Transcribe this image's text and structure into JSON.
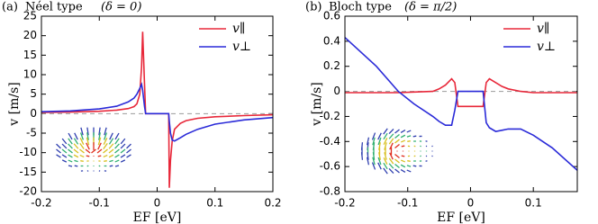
{
  "chart_data": [
    {
      "type": "line",
      "panel_label": "(a)",
      "title": "Néel type",
      "subtitle": "(δ = 0)",
      "xlabel": "EF [eV]",
      "ylabel": "v [m/s]",
      "x": [
        -0.2,
        -0.15,
        -0.1,
        -0.07,
        -0.05,
        -0.04,
        -0.035,
        -0.03,
        -0.027,
        -0.025,
        -0.022,
        -0.02,
        0.02,
        0.021,
        0.023,
        0.026,
        0.03,
        0.04,
        0.05,
        0.07,
        0.1,
        0.15,
        0.2
      ],
      "series": [
        {
          "name": "v∥",
          "color": "#e8283a",
          "values": [
            0.3,
            0.4,
            0.6,
            0.9,
            1.3,
            1.8,
            2.5,
            5,
            12,
            21,
            8,
            0,
            0,
            -19,
            -12,
            -7,
            -4,
            -2.5,
            -1.8,
            -1.2,
            -0.8,
            -0.5,
            -0.3
          ]
        },
        {
          "name": "v⊥",
          "color": "#2a2ad8",
          "values": [
            0.5,
            0.7,
            1.2,
            1.9,
            3,
            4,
            5,
            6.5,
            7.5,
            6,
            2,
            0,
            0,
            -2,
            -5,
            -6.8,
            -7,
            -6.2,
            -5.3,
            -4,
            -2.7,
            -1.6,
            -1
          ]
        }
      ],
      "xlim": [
        -0.2,
        0.2
      ],
      "xticks": [
        -0.2,
        -0.1,
        0,
        0.1,
        0.2
      ],
      "ylim": [
        -20,
        25
      ],
      "yticks": [
        -20,
        -15,
        -10,
        -5,
        0,
        5,
        10,
        15,
        20,
        25
      ],
      "zero_line": true,
      "legend": "upper right"
    },
    {
      "type": "line",
      "panel_label": "(b)",
      "title": "Bloch type",
      "subtitle": "(δ = π/2)",
      "xlabel": "EF [eV]",
      "ylabel": "v [m/s]",
      "x": [
        -0.2,
        -0.15,
        -0.115,
        -0.09,
        -0.06,
        -0.05,
        -0.04,
        -0.03,
        -0.025,
        -0.02,
        0.02,
        0.025,
        0.03,
        0.04,
        0.05,
        0.06,
        0.08,
        0.1,
        0.13,
        0.17
      ],
      "series": [
        {
          "name": "v∥",
          "color": "#e8283a",
          "values": [
            -0.01,
            -0.01,
            -0.01,
            -0.005,
            0,
            0.02,
            0.05,
            0.1,
            0.07,
            -0.12,
            -0.12,
            0.07,
            0.1,
            0.07,
            0.04,
            0.02,
            0,
            -0.01,
            -0.01,
            -0.01
          ]
        },
        {
          "name": "v⊥",
          "color": "#2a2ad8",
          "values": [
            0.43,
            0.2,
            0,
            -0.1,
            -0.2,
            -0.24,
            -0.27,
            -0.27,
            -0.15,
            0,
            0,
            -0.25,
            -0.29,
            -0.32,
            -0.31,
            -0.3,
            -0.3,
            -0.35,
            -0.45,
            -0.63
          ]
        }
      ],
      "xlim": [
        -0.2,
        0.17
      ],
      "xticks": [
        -0.2,
        -0.1,
        0,
        0.1
      ],
      "ylim": [
        -0.8,
        0.6
      ],
      "yticks": [
        -0.8,
        -0.6,
        -0.4,
        -0.2,
        0,
        0.2,
        0.4,
        0.6
      ],
      "zero_line": true,
      "legend": "upper right"
    }
  ]
}
